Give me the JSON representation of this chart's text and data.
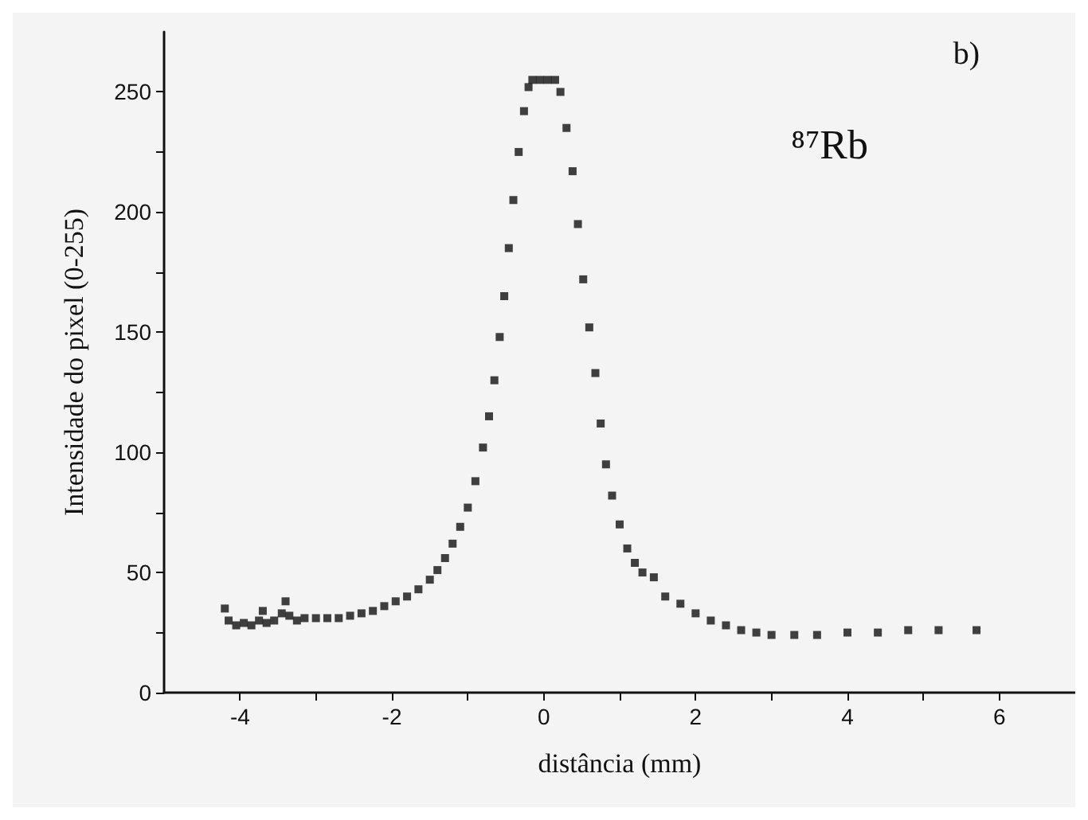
{
  "chart_data": {
    "type": "scatter",
    "xlabel": "distância (mm)",
    "ylabel": "Intensidade do pixel (0-255)",
    "annotations": [
      "b)",
      "⁸⁷Rb"
    ],
    "xlim": [
      -5,
      7
    ],
    "ylim": [
      0,
      275
    ],
    "xticks": [
      -4,
      {
        "value": -3,
        "label": null
      },
      -2,
      {
        "value": -1,
        "label": null
      },
      0,
      {
        "value": 1,
        "label": null
      },
      2,
      {
        "value": 3,
        "label": null
      },
      4,
      {
        "value": 5,
        "label": null
      },
      6
    ],
    "yticks": [
      0,
      {
        "value": 25,
        "label": null
      },
      50,
      {
        "value": 75,
        "label": null
      },
      100,
      {
        "value": 125,
        "label": null
      },
      150,
      {
        "value": 175,
        "label": null
      },
      200,
      {
        "value": 225,
        "label": null
      },
      250
    ],
    "grid": false,
    "marker": "square",
    "series": [
      {
        "color": "#111111",
        "x": [
          -4.2,
          -4.15,
          -4.05,
          -3.95,
          -3.85,
          -3.75,
          -3.7,
          -3.65,
          -3.55,
          -3.45,
          -3.4,
          -3.35,
          -3.25,
          -3.15,
          -3.0,
          -2.85,
          -2.7,
          -2.55,
          -2.4,
          -2.25,
          -2.1,
          -1.95,
          -1.8,
          -1.65,
          -1.5,
          -1.4,
          -1.3,
          -1.2,
          -1.1,
          -1.0,
          -0.9,
          -0.8,
          -0.72,
          -0.65,
          -0.58,
          -0.52,
          -0.46,
          -0.4,
          -0.33,
          -0.26,
          -0.2,
          -0.15,
          -0.05,
          0.05,
          0.15,
          0.22,
          0.3,
          0.38,
          0.45,
          0.52,
          0.6,
          0.68,
          0.75,
          0.82,
          0.9,
          1.0,
          1.1,
          1.2,
          1.3,
          1.45,
          1.6,
          1.8,
          2.0,
          2.2,
          2.4,
          2.6,
          2.8,
          3.0,
          3.3,
          3.6,
          4.0,
          4.4,
          4.8,
          5.2,
          5.7
        ],
        "values": [
          35,
          30,
          28,
          29,
          28,
          30,
          34,
          29,
          30,
          33,
          38,
          32,
          30,
          31,
          31,
          31,
          31,
          32,
          33,
          34,
          36,
          38,
          40,
          43,
          47,
          51,
          56,
          62,
          69,
          77,
          88,
          102,
          115,
          130,
          148,
          165,
          185,
          205,
          225,
          242,
          252,
          255,
          255,
          255,
          255,
          250,
          235,
          217,
          195,
          172,
          152,
          133,
          112,
          95,
          82,
          70,
          60,
          54,
          50,
          48,
          40,
          37,
          33,
          30,
          28,
          26,
          25,
          24,
          24,
          24,
          25,
          25,
          26,
          26,
          26
        ]
      }
    ]
  }
}
